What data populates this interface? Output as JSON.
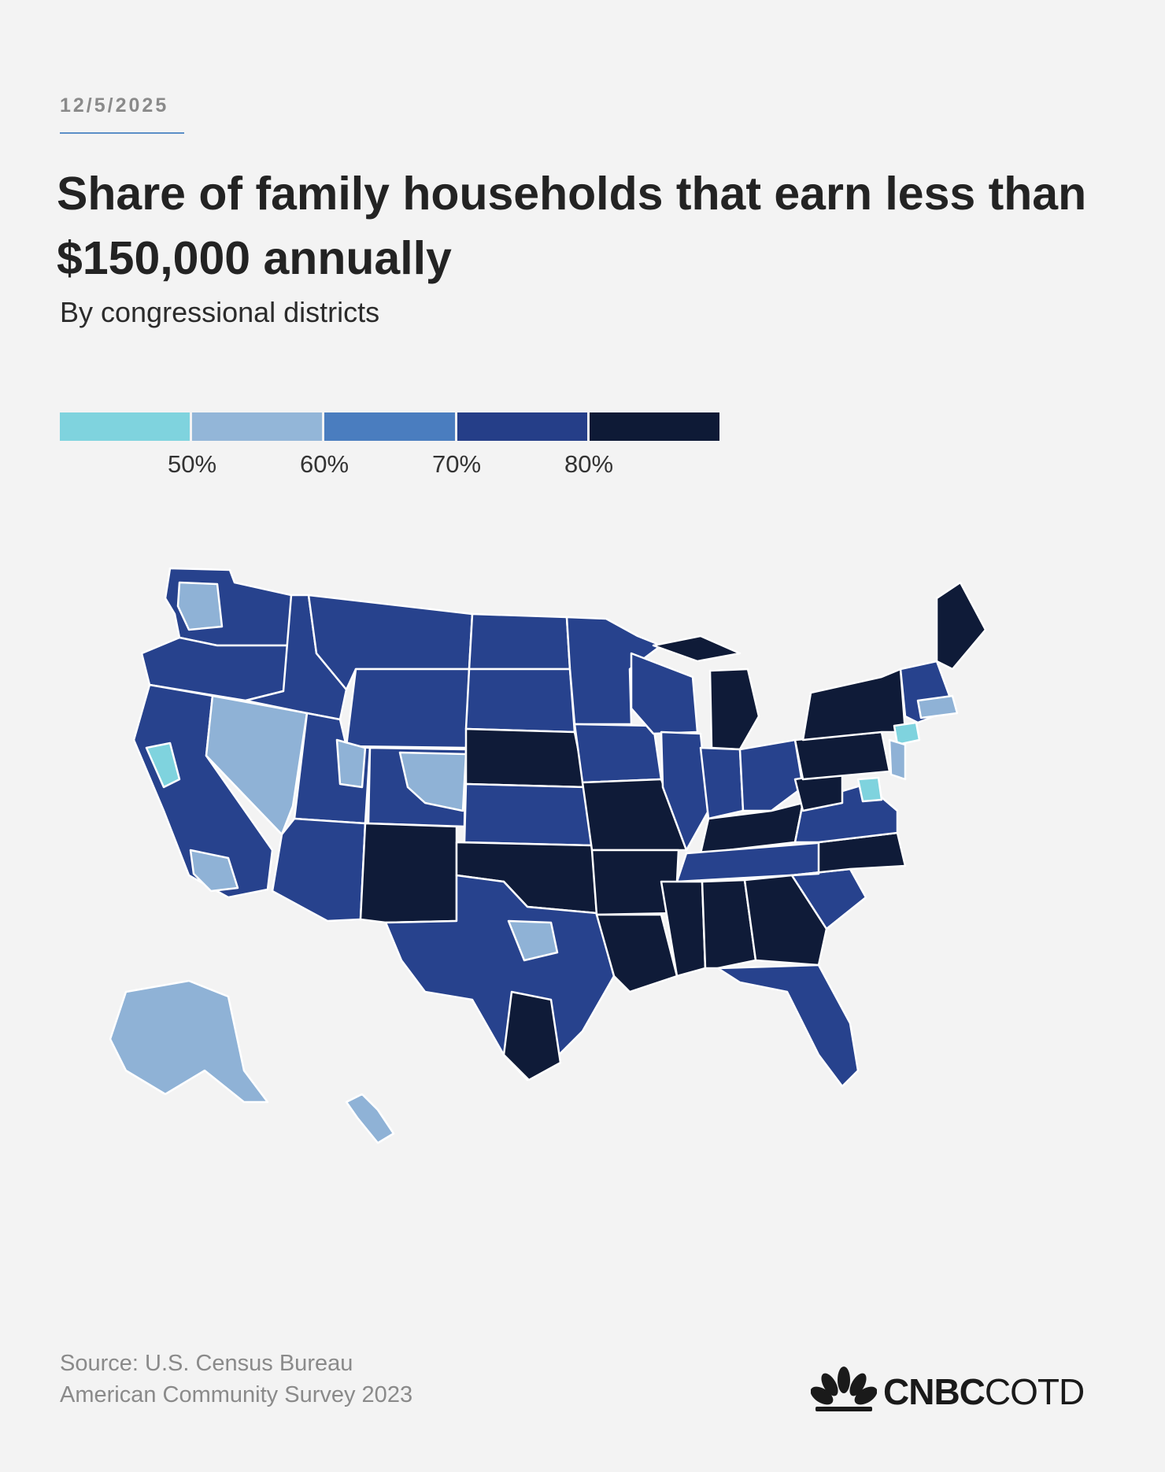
{
  "header": {
    "date": "12/5/2025",
    "title": "Share of family households that earn less than $150,000 annually",
    "subtitle": "By congressional districts"
  },
  "legend": {
    "colors": [
      "#7fd3de",
      "#93b6d8",
      "#4a7dbf",
      "#253e88",
      "#0e1a36"
    ],
    "labels": [
      "50%",
      "60%",
      "70%",
      "80%"
    ]
  },
  "footer": {
    "source_line1": "Source: U.S. Census Bureau",
    "source_line2": "American Community Survey 2023",
    "brand_bold": "CNBC",
    "brand_light": "COTD"
  }
}
